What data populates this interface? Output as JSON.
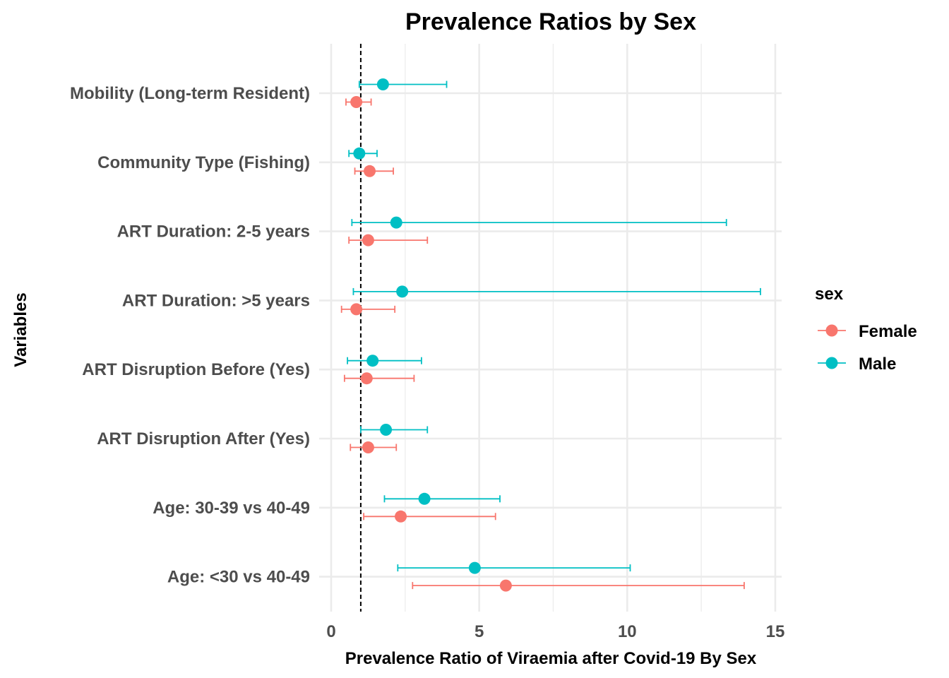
{
  "chart_data": {
    "type": "scatter",
    "subtype": "forest-plot-with-error-bars",
    "title": "Prevalence Ratios by Sex",
    "xlabel": "Prevalence Ratio of Viraemia after Covid-19 By Sex",
    "ylabel": "Variables",
    "xlim": [
      0,
      15
    ],
    "x_ticks": [
      0,
      5,
      10,
      15
    ],
    "reference_line": 1,
    "grid": true,
    "legend": {
      "title": "sex",
      "placement": "right"
    },
    "categories": [
      "Mobility (Long-term Resident)",
      "Community Type (Fishing)",
      "ART Duration: 2-5 years",
      "ART Duration: >5 years",
      "ART Disruption Before (Yes)",
      "ART Disruption After (Yes)",
      "Age: 30-39 vs 40-49",
      "Age: <30 vs 40-49"
    ],
    "series": [
      {
        "name": "Female",
        "color": "#F8766D",
        "estimates": [
          0.85,
          1.3,
          1.25,
          0.85,
          1.2,
          1.25,
          2.35,
          5.9
        ],
        "lower": [
          0.5,
          0.8,
          0.6,
          0.35,
          0.45,
          0.65,
          1.1,
          2.75
        ],
        "upper": [
          1.35,
          2.1,
          3.25,
          2.15,
          2.8,
          2.2,
          5.55,
          13.95
        ]
      },
      {
        "name": "Male",
        "color": "#00BFC4",
        "estimates": [
          1.75,
          0.95,
          2.2,
          2.4,
          1.4,
          1.85,
          3.15,
          4.85
        ],
        "lower": [
          0.95,
          0.6,
          0.7,
          0.75,
          0.55,
          1.0,
          1.8,
          2.25
        ],
        "upper": [
          3.9,
          1.55,
          13.35,
          14.5,
          3.05,
          3.25,
          5.7,
          10.1
        ]
      }
    ]
  }
}
